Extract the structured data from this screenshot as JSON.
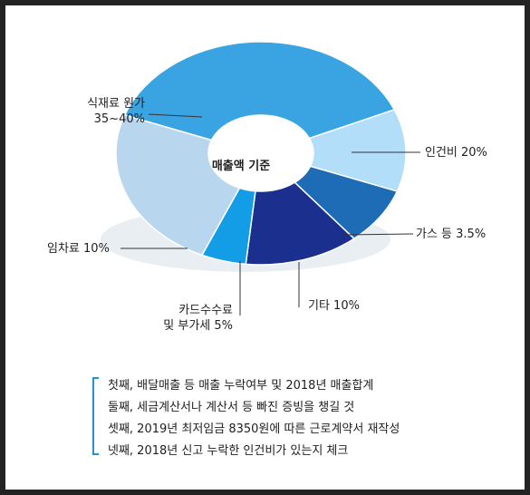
{
  "chart_data": {
    "type": "pie",
    "center_label": "매출액 기준",
    "slices": [
      {
        "label": [
          "식재료 원가",
          "35~40%"
        ],
        "color": "#3aa4e2"
      },
      {
        "label": [
          "인건비 20%"
        ],
        "color": "#b2def9"
      },
      {
        "label": [
          "가스 등 3.5%"
        ],
        "color": "#1e6cb6"
      },
      {
        "label": [
          "기타 10%"
        ],
        "color": "#1b2f8f"
      },
      {
        "label": [
          "카드수수료",
          "및 부가세 5%"
        ],
        "color": "#139de6"
      },
      {
        "label": [
          "임차료 10%"
        ],
        "color": "#b8d6ee"
      }
    ]
  },
  "notes": {
    "line1": "첫째, 배달매출 등 매출 누락여부 및 2018년 매출합계",
    "line2": "둘째, 세금계산서나 계산서 등 빠진 증빙을 챙길 것",
    "line3": "셋째, 2019년 최저임금 8350원에 따른 근로계약서 재작성",
    "line4": "넷째, 2018년 신고 누락한 인건비가 있는지 체크"
  }
}
